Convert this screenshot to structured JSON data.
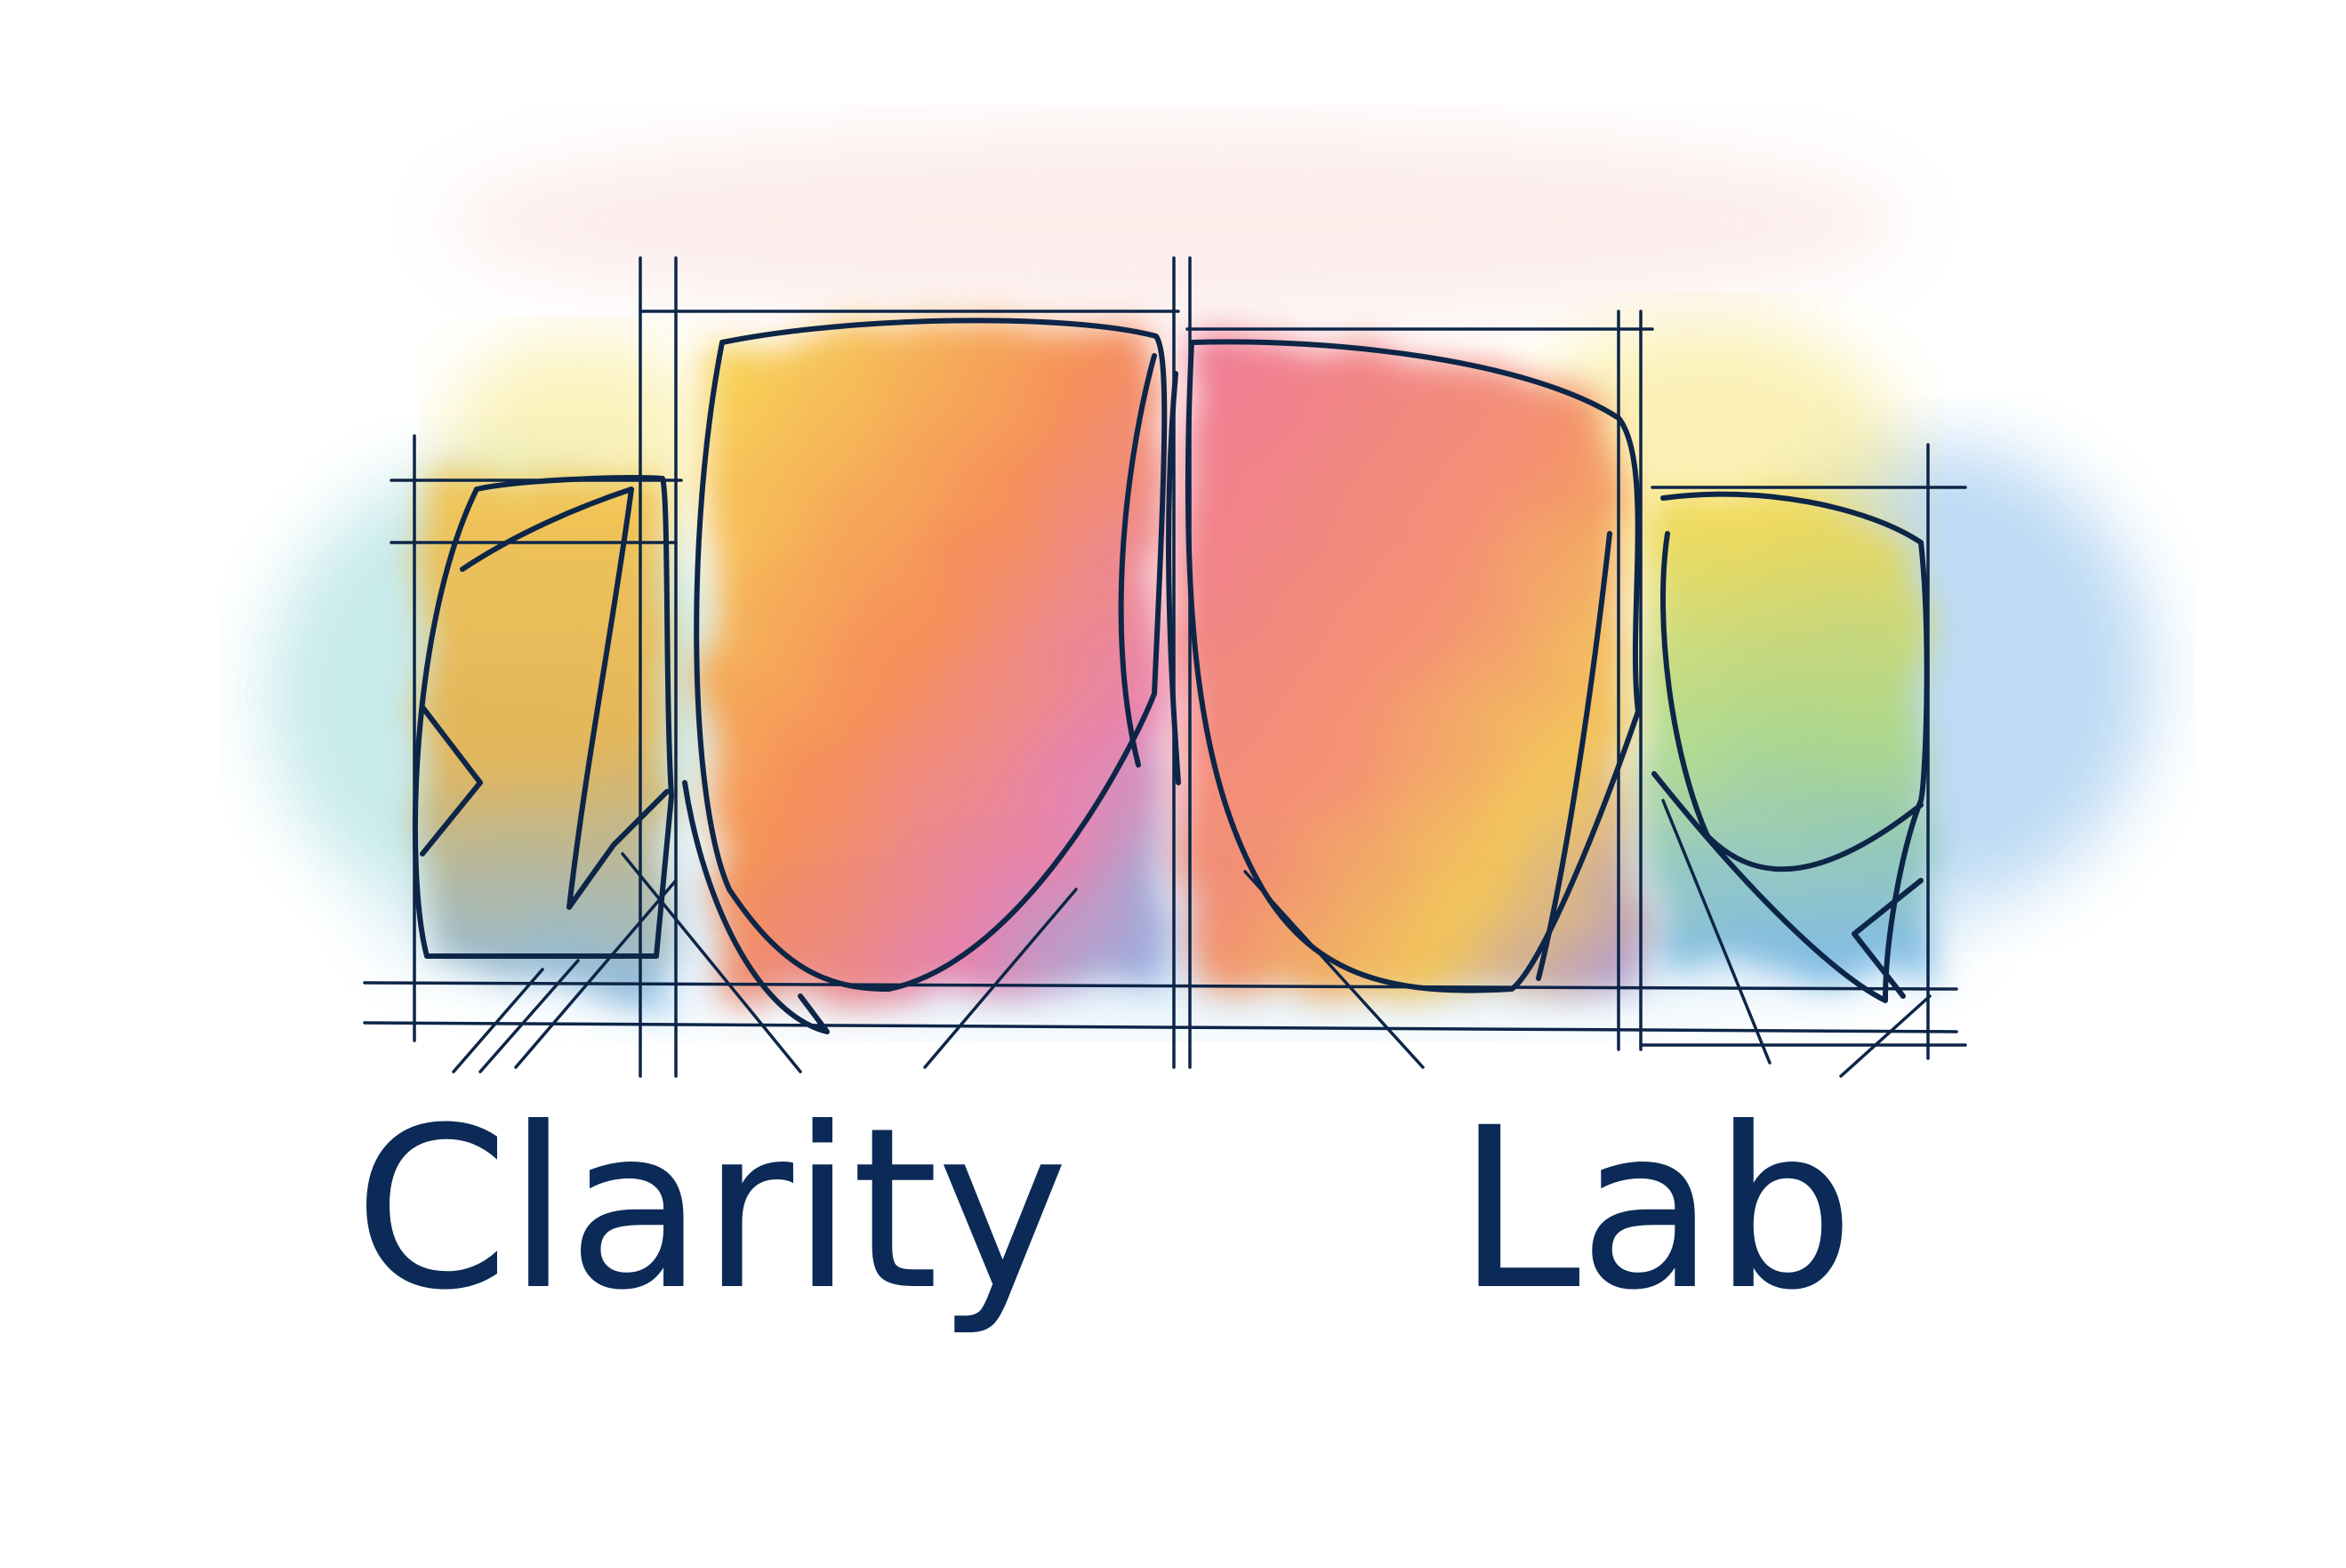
{
  "logo": {
    "word_left": "Clarity",
    "word_right": "Lab",
    "text_color": "#0b2a57",
    "line_color": "#0d2547",
    "wash_colors": [
      "#f7d84a",
      "#f5a34c",
      "#f26e7a",
      "#ef8cb7",
      "#a98fd6",
      "#7ab6ea",
      "#8fd5d8",
      "#b5e08d"
    ]
  }
}
